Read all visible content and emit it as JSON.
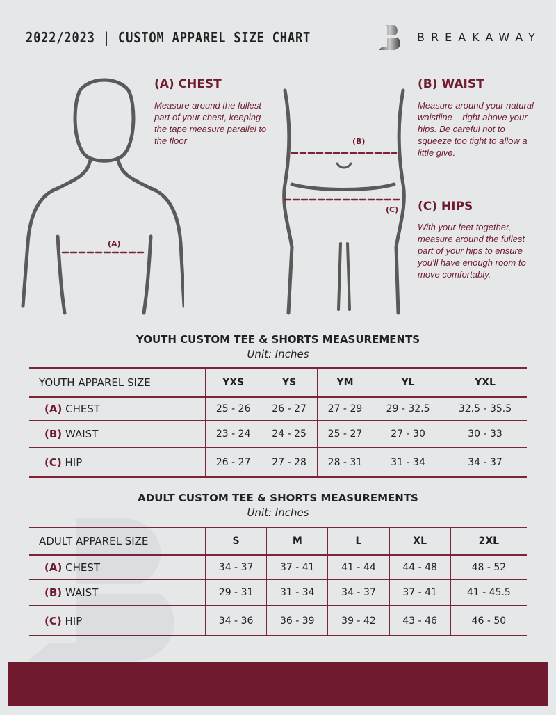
{
  "header": {
    "title": "2022/2023  |  CUSTOM APPAREL SIZE CHART",
    "brand": "BREAKAWAY"
  },
  "colors": {
    "accent": "#6f1a2e",
    "background": "#e6e7e9"
  },
  "chest": {
    "heading": "(A) CHEST",
    "text": "Measure around the fullest part of your chest, keeping the tape measure parallel to the floor",
    "marker": "(A)"
  },
  "waist": {
    "heading": "(B) WAIST",
    "text": "Measure around your natural waistline – right above your hips. Be careful not to squeeze too tight to allow a little give.",
    "marker": "(B)"
  },
  "hips": {
    "heading": "(C) HIPS",
    "text": "With your feet together, measure around the fullest part of your hips to ensure you'll have enough room to move comfortably.",
    "marker": "(C)"
  },
  "youth": {
    "title": "YOUTH CUSTOM TEE & SHORTS MEASUREMENTS",
    "unit": "Unit: Inches",
    "corner": "YOUTH APPAREL SIZE",
    "sizes": [
      "YXS",
      "YS",
      "YM",
      "YL",
      "YXL"
    ],
    "rows": [
      {
        "letter": "(A)",
        "label": "CHEST",
        "values": [
          "25 - 26",
          "26 - 27",
          "27 - 29",
          "29 - 32.5",
          "32.5 - 35.5"
        ]
      },
      {
        "letter": "(B)",
        "label": "WAIST",
        "values": [
          "23 - 24",
          "24 - 25",
          "25 - 27",
          "27 - 30",
          "30 - 33"
        ]
      },
      {
        "letter": "(C)",
        "label": "HIP",
        "values": [
          "26 - 27",
          "27 - 28",
          "28 - 31",
          "31 - 34",
          "34 - 37"
        ]
      }
    ]
  },
  "adult": {
    "title": "ADULT CUSTOM TEE & SHORTS MEASUREMENTS",
    "unit": "Unit: Inches",
    "corner": "ADULT APPAREL SIZE",
    "sizes": [
      "S",
      "M",
      "L",
      "XL",
      "2XL"
    ],
    "rows": [
      {
        "letter": "(A)",
        "label": "CHEST",
        "values": [
          "34 - 37",
          "37 - 41",
          "41 - 44",
          "44 - 48",
          "48 - 52"
        ]
      },
      {
        "letter": "(B)",
        "label": "WAIST",
        "values": [
          "29 - 31",
          "31 - 34",
          "34 - 37",
          "37 - 41",
          "41 - 45.5"
        ]
      },
      {
        "letter": "(C)",
        "label": "HIP",
        "values": [
          "34 - 36",
          "36 - 39",
          "39 - 42",
          "43 - 46",
          "46 - 50"
        ]
      }
    ]
  }
}
